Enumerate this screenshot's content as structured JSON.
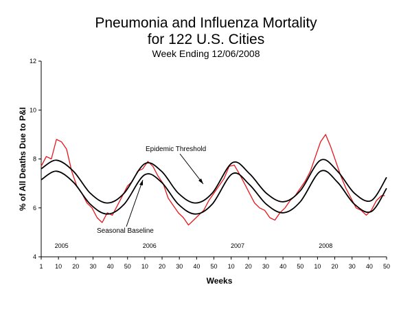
{
  "chart_data": {
    "type": "line",
    "title": "Pneumonia and Influenza Mortality",
    "title_line2": "for 122 U.S. Cities",
    "subtitle": "Week Ending 12/06/2008",
    "xlabel": "Weeks",
    "ylabel": "% of All Deaths Due to P&I",
    "ylim": [
      4,
      12
    ],
    "yticks": [
      4,
      6,
      8,
      10,
      12
    ],
    "xtick_labels": [
      "1",
      "10",
      "20",
      "30",
      "40",
      "50",
      "10",
      "20",
      "30",
      "40",
      "50",
      "10",
      "20",
      "30",
      "40",
      "50",
      "10",
      "20",
      "30",
      "40",
      "50"
    ],
    "years": [
      "2005",
      "2006",
      "2007",
      "2008"
    ],
    "total_weeks": 205,
    "grid": false,
    "annotations": [
      "Epidemic Threshold",
      "Seasonal Baseline"
    ],
    "series": [
      {
        "name": "Epidemic Threshold",
        "color": "#000000",
        "x": [
          1,
          10,
          20,
          30,
          40,
          50,
          62,
          72,
          82,
          92,
          102,
          114,
          124,
          134,
          144,
          154,
          166,
          176,
          186,
          196,
          205
        ],
        "y": [
          7.6,
          7.95,
          7.5,
          6.6,
          6.2,
          6.6,
          7.8,
          7.5,
          6.6,
          6.2,
          6.6,
          7.85,
          7.4,
          6.6,
          6.25,
          6.7,
          7.95,
          7.5,
          6.6,
          6.3,
          7.25
        ]
      },
      {
        "name": "Seasonal Baseline",
        "color": "#000000",
        "x": [
          1,
          10,
          20,
          30,
          40,
          50,
          62,
          72,
          82,
          92,
          102,
          114,
          124,
          134,
          144,
          154,
          166,
          176,
          186,
          196,
          205
        ],
        "y": [
          7.15,
          7.5,
          7.05,
          6.15,
          5.75,
          6.15,
          7.35,
          7.05,
          6.15,
          5.75,
          6.15,
          7.4,
          6.95,
          6.15,
          5.8,
          6.25,
          7.5,
          7.05,
          6.15,
          5.85,
          6.8
        ]
      },
      {
        "name": "P&I %",
        "color": "#e8141b",
        "x": [
          1,
          4,
          7,
          10,
          13,
          16,
          19,
          22,
          25,
          28,
          31,
          34,
          37,
          40,
          43,
          46,
          49,
          52,
          55,
          58,
          61,
          64,
          67,
          70,
          73,
          76,
          79,
          82,
          85,
          88,
          91,
          94,
          97,
          100,
          103,
          106,
          109,
          112,
          115,
          118,
          121,
          124,
          127,
          130,
          133,
          136,
          139,
          142,
          145,
          148,
          151,
          154,
          157,
          160,
          163,
          166,
          169,
          172,
          175,
          178,
          181,
          184,
          187,
          190,
          193,
          196,
          199,
          202,
          204
        ],
        "y": [
          7.7,
          8.1,
          8.0,
          8.8,
          8.7,
          8.4,
          7.5,
          6.9,
          6.6,
          6.2,
          6.0,
          5.6,
          5.4,
          5.8,
          5.7,
          6.1,
          6.5,
          6.9,
          7.1,
          7.5,
          7.6,
          7.9,
          7.7,
          7.3,
          7.0,
          6.4,
          6.1,
          5.8,
          5.6,
          5.3,
          5.5,
          5.7,
          5.9,
          6.3,
          6.6,
          6.9,
          7.2,
          7.7,
          7.75,
          7.4,
          7.0,
          6.6,
          6.2,
          6.0,
          5.9,
          5.6,
          5.5,
          5.8,
          6.0,
          6.3,
          6.5,
          6.8,
          7.1,
          7.5,
          8.1,
          8.7,
          9.0,
          8.5,
          7.9,
          7.3,
          6.8,
          6.4,
          6.0,
          5.9,
          5.7,
          5.9,
          6.3,
          6.5,
          6.5
        ]
      }
    ]
  }
}
